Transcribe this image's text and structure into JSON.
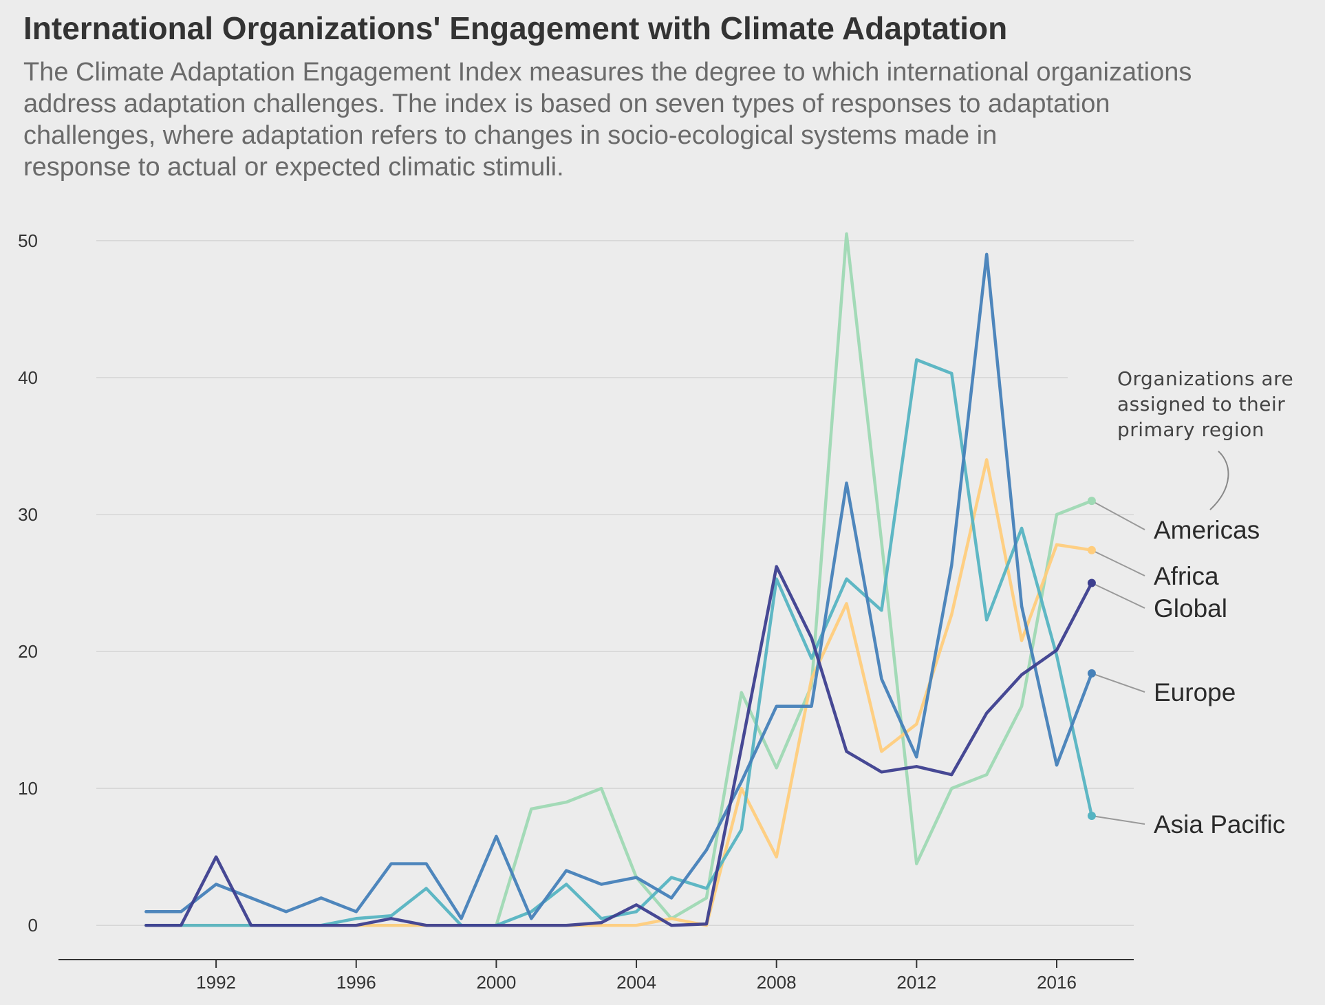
{
  "title": "International Organizations' Engagement with Climate Adaptation",
  "subtitle_lines": [
    "The Climate Adaptation Engagement Index measures the degree to which international organizations",
    "address adaptation challenges. The index is based on seven types of responses to adaptation",
    "challenges, where adaptation refers to changes in socio-ecological systems made in",
    "response to actual or expected climatic stimuli."
  ],
  "annotation_lines": [
    "Organizations are",
    "assigned to their",
    "primary region"
  ],
  "colors": {
    "background": "#ececec",
    "grid": "#d6d6d6",
    "axis": "#333333",
    "leader": "#999999"
  },
  "chart_data": {
    "type": "line",
    "x": [
      1990,
      1991,
      1992,
      1993,
      1994,
      1995,
      1996,
      1997,
      1998,
      1999,
      2000,
      2001,
      2002,
      2003,
      2004,
      2005,
      2006,
      2007,
      2008,
      2009,
      2010,
      2011,
      2012,
      2013,
      2014,
      2015,
      2016,
      2017
    ],
    "xlim": [
      1987.5,
      2018.2
    ],
    "ylim": [
      -2.5,
      52
    ],
    "x_ticks": [
      1992,
      1996,
      2000,
      2004,
      2008,
      2012,
      2016
    ],
    "y_ticks": [
      0,
      10,
      20,
      30,
      40,
      50
    ],
    "grid": "horizontal",
    "legend": "direct labels at line ends (right)",
    "series": [
      {
        "name": "Americas",
        "color": "#9fd9b4",
        "values": [
          0,
          0,
          0,
          0,
          0,
          0,
          0,
          0,
          0,
          0,
          0,
          8.5,
          9,
          10,
          3.5,
          0.5,
          2,
          17,
          11.5,
          17.5,
          50.5,
          28,
          4.5,
          10,
          11,
          16,
          30,
          31
        ]
      },
      {
        "name": "Africa",
        "color": "#ffcd7d",
        "values": [
          0,
          0,
          0,
          0,
          0,
          0,
          0,
          0,
          0,
          0,
          0,
          0,
          0,
          0,
          0,
          0.5,
          0,
          10,
          5,
          18,
          23.5,
          12.7,
          14.7,
          22.7,
          34,
          20.8,
          27.8,
          27.4
        ]
      },
      {
        "name": "Asia Pacific",
        "color": "#56b4c2",
        "values": [
          0,
          0,
          0,
          0,
          0,
          0,
          0.5,
          0.7,
          2.7,
          0,
          0,
          1,
          3,
          0.5,
          1,
          3.5,
          2.7,
          7,
          25.3,
          19.5,
          25.3,
          23,
          41.3,
          40.3,
          22.3,
          29,
          19.7,
          8
        ]
      },
      {
        "name": "Europe",
        "color": "#4681b9",
        "values": [
          1,
          1,
          3,
          2,
          1,
          2,
          1,
          4.5,
          4.5,
          0.5,
          6.5,
          0.5,
          4,
          3,
          3.5,
          2,
          5.5,
          10.5,
          16,
          16,
          32.3,
          18,
          12.3,
          26.3,
          49,
          23.3,
          11.7,
          18.4
        ]
      },
      {
        "name": "Global",
        "color": "#3d3f8f",
        "values": [
          0,
          0,
          5,
          0,
          0,
          0,
          0,
          0.5,
          0,
          0,
          0,
          0,
          0,
          0.2,
          1.5,
          0,
          0.1,
          13,
          26.2,
          21,
          12.7,
          11.2,
          11.6,
          11,
          15.5,
          18.3,
          20.1,
          25
        ]
      }
    ]
  }
}
